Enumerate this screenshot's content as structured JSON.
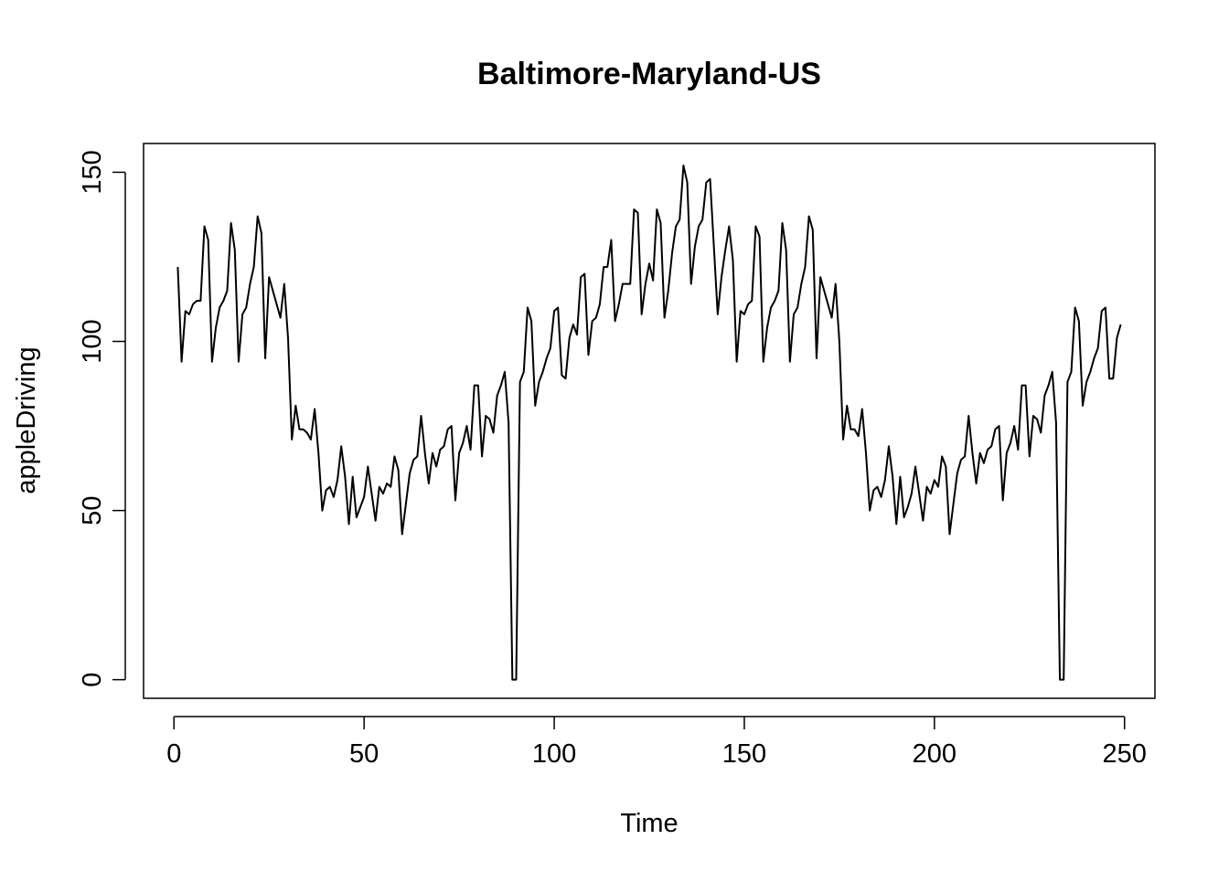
{
  "chart_data": {
    "type": "line",
    "title": "Baltimore-Maryland-US",
    "xlabel": "Time",
    "ylabel": "appleDriving",
    "xlim": [
      -8,
      258
    ],
    "ylim": [
      -5.5,
      158.5
    ],
    "xticks": [
      0,
      50,
      100,
      150,
      200,
      250
    ],
    "yticks": [
      0,
      50,
      100,
      150
    ],
    "xtick_labels": [
      "0",
      "50",
      "100",
      "150",
      "200",
      "250"
    ],
    "ytick_labels": [
      "0",
      "50",
      "100",
      "150"
    ],
    "grid": false,
    "legend": "none",
    "line_color": "#000000",
    "series": [
      {
        "x_start": 1,
        "x_step": 1,
        "values": [
          122,
          94,
          109,
          108,
          111,
          112,
          112,
          134,
          130,
          94,
          104,
          110,
          112,
          115,
          135,
          127,
          94,
          108,
          110,
          117,
          122,
          137,
          132,
          95,
          119,
          115,
          111,
          107,
          117,
          101,
          71,
          81,
          74,
          74,
          73,
          71,
          80,
          67,
          50,
          56,
          57,
          54,
          59,
          69,
          60,
          46,
          60,
          48,
          51,
          54,
          63,
          55,
          47,
          57,
          55,
          58,
          57,
          66,
          62,
          43,
          52,
          61,
          65,
          66,
          78,
          67,
          58,
          67,
          63,
          68,
          69,
          74,
          75,
          53,
          67,
          70,
          75,
          68,
          87,
          87,
          66,
          78,
          77,
          73,
          84,
          87,
          91,
          76,
          0,
          0,
          88,
          91,
          110,
          106,
          81,
          88,
          91,
          95,
          98,
          109,
          110,
          90,
          89,
          101,
          105,
          102,
          119,
          120,
          96,
          106,
          107,
          111,
          122,
          122,
          130,
          106,
          111,
          117,
          117,
          117,
          139,
          138,
          108,
          117,
          123,
          118,
          139,
          135,
          107,
          115,
          126,
          134,
          136,
          152,
          147,
          117,
          128,
          134,
          136,
          147,
          148,
          128,
          108,
          119,
          127,
          134,
          124,
          94,
          109,
          108,
          111,
          112,
          134,
          131,
          94,
          104,
          110,
          112,
          115,
          135,
          127,
          94,
          108,
          110,
          117,
          122,
          137,
          133,
          95,
          119,
          115,
          111,
          107,
          117,
          100,
          71,
          81,
          74,
          74,
          72,
          80,
          67,
          50,
          56,
          57,
          54,
          59,
          69,
          60,
          46,
          60,
          48,
          51,
          55,
          63,
          55,
          47,
          57,
          55,
          59,
          57,
          66,
          63,
          43,
          52,
          61,
          65,
          66,
          78,
          67,
          58,
          67,
          64,
          68,
          69,
          74,
          75,
          53,
          67,
          70,
          75,
          68,
          87,
          87,
          66,
          78,
          77,
          73,
          84,
          87,
          91,
          76,
          0,
          0,
          88,
          91,
          110,
          106,
          81,
          88,
          91,
          95,
          98,
          109,
          110,
          89,
          89,
          101,
          105
        ]
      }
    ]
  }
}
